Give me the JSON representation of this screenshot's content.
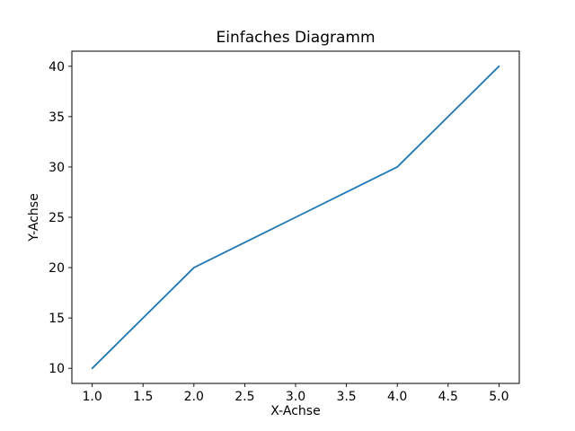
{
  "chart_data": {
    "type": "line",
    "title": "Einfaches Diagramm",
    "xlabel": "X-Achse",
    "ylabel": "Y-Achse",
    "x": [
      1,
      2,
      3,
      4,
      5
    ],
    "y": [
      10,
      20,
      25,
      30,
      40
    ],
    "xlim": [
      0.8,
      5.2
    ],
    "ylim": [
      8.5,
      41.5
    ],
    "xticks": [
      1.0,
      1.5,
      2.0,
      2.5,
      3.0,
      3.5,
      4.0,
      4.5,
      5.0
    ],
    "xtick_labels": [
      "1.0",
      "1.5",
      "2.0",
      "2.5",
      "3.0",
      "3.5",
      "4.0",
      "4.5",
      "5.0"
    ],
    "yticks": [
      10,
      15,
      20,
      25,
      30,
      35,
      40
    ],
    "ytick_labels": [
      "10",
      "15",
      "20",
      "25",
      "30",
      "35",
      "40"
    ],
    "line_color": "#1f77b4",
    "axis_color": "#000000",
    "background_color": "#ffffff",
    "grid": false,
    "legend": null
  }
}
